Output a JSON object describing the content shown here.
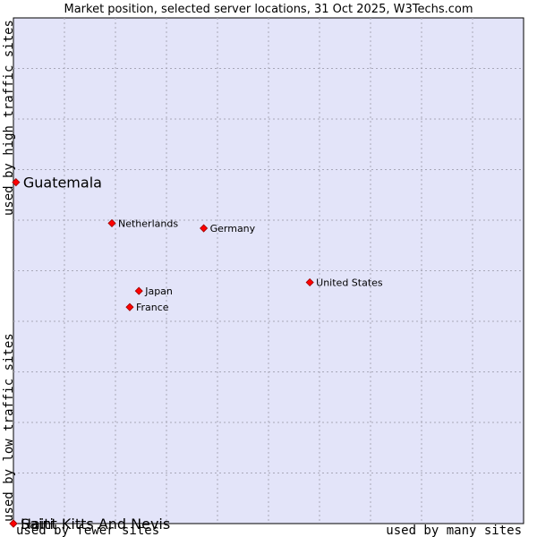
{
  "chart_data": {
    "type": "scatter",
    "title": "Market position, selected server locations, 31 Oct 2025, W3Techs.com",
    "xlabel_left": "used by fewer sites",
    "xlabel_right": "used by many sites",
    "ylabel_top": "used by high traffic sites",
    "ylabel_bottom": "used by low traffic sites",
    "xlim": [
      0,
      10
    ],
    "ylim": [
      0,
      10
    ],
    "grid": true,
    "colors": {
      "plot_background": "#e3e4f9",
      "grid": "#a8a8b8",
      "marker": "#ff0000",
      "marker_outline": "#990000"
    },
    "points": [
      {
        "label": "Guatemala",
        "x": 0.05,
        "y": 6.75,
        "highlight": true
      },
      {
        "label": "Netherlands",
        "x": 1.93,
        "y": 5.94,
        "highlight": false
      },
      {
        "label": "Germany",
        "x": 3.73,
        "y": 5.84,
        "highlight": false
      },
      {
        "label": "United States",
        "x": 5.81,
        "y": 4.77,
        "highlight": false
      },
      {
        "label": "Japan",
        "x": 2.46,
        "y": 4.6,
        "highlight": false
      },
      {
        "label": "France",
        "x": 2.28,
        "y": 4.28,
        "highlight": false
      },
      {
        "label": "Saint Kitts And Nevis",
        "x": 0.0,
        "y": 0.0,
        "highlight": true
      },
      {
        "label": "Haiti",
        "x": 0.0,
        "y": 0.0,
        "highlight": true
      }
    ]
  }
}
